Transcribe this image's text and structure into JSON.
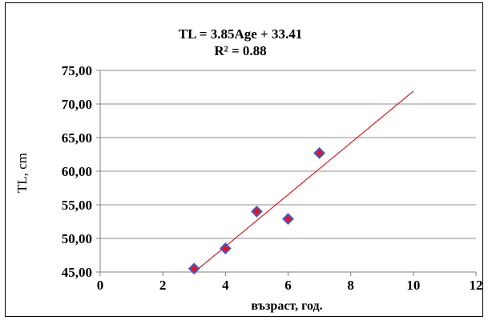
{
  "chart_data": {
    "type": "scatter",
    "equation_line1": "TL = 3.85Age + 33.41",
    "equation_line2": "R² = 0.88",
    "xlabel": "възраст, год.",
    "ylabel": "TL, cm",
    "xlim": [
      0,
      12
    ],
    "ylim": [
      45,
      75
    ],
    "x_ticks": [
      0,
      2,
      4,
      6,
      8,
      10,
      12
    ],
    "y_ticks": [
      45,
      50,
      55,
      60,
      65,
      70,
      75
    ],
    "x_tick_labels": [
      "0",
      "2",
      "4",
      "6",
      "8",
      "10",
      "12"
    ],
    "y_tick_labels": [
      "45,00",
      "50,00",
      "55,00",
      "60,00",
      "65,00",
      "70,00",
      "75,00"
    ],
    "grid": "horizontal",
    "series": [
      {
        "points": [
          {
            "x": 3,
            "y": 45.5
          },
          {
            "x": 4,
            "y": 48.5
          },
          {
            "x": 5,
            "y": 54.0
          },
          {
            "x": 6,
            "y": 52.9
          },
          {
            "x": 7,
            "y": 62.7
          }
        ],
        "marker": "diamond",
        "marker_fill": "#e8141c",
        "marker_edge": "#3b5bd6"
      }
    ],
    "trendline": {
      "slope": 3.85,
      "intercept": 33.41,
      "x_from": 3,
      "x_to": 10,
      "color": "#e8141c"
    }
  }
}
